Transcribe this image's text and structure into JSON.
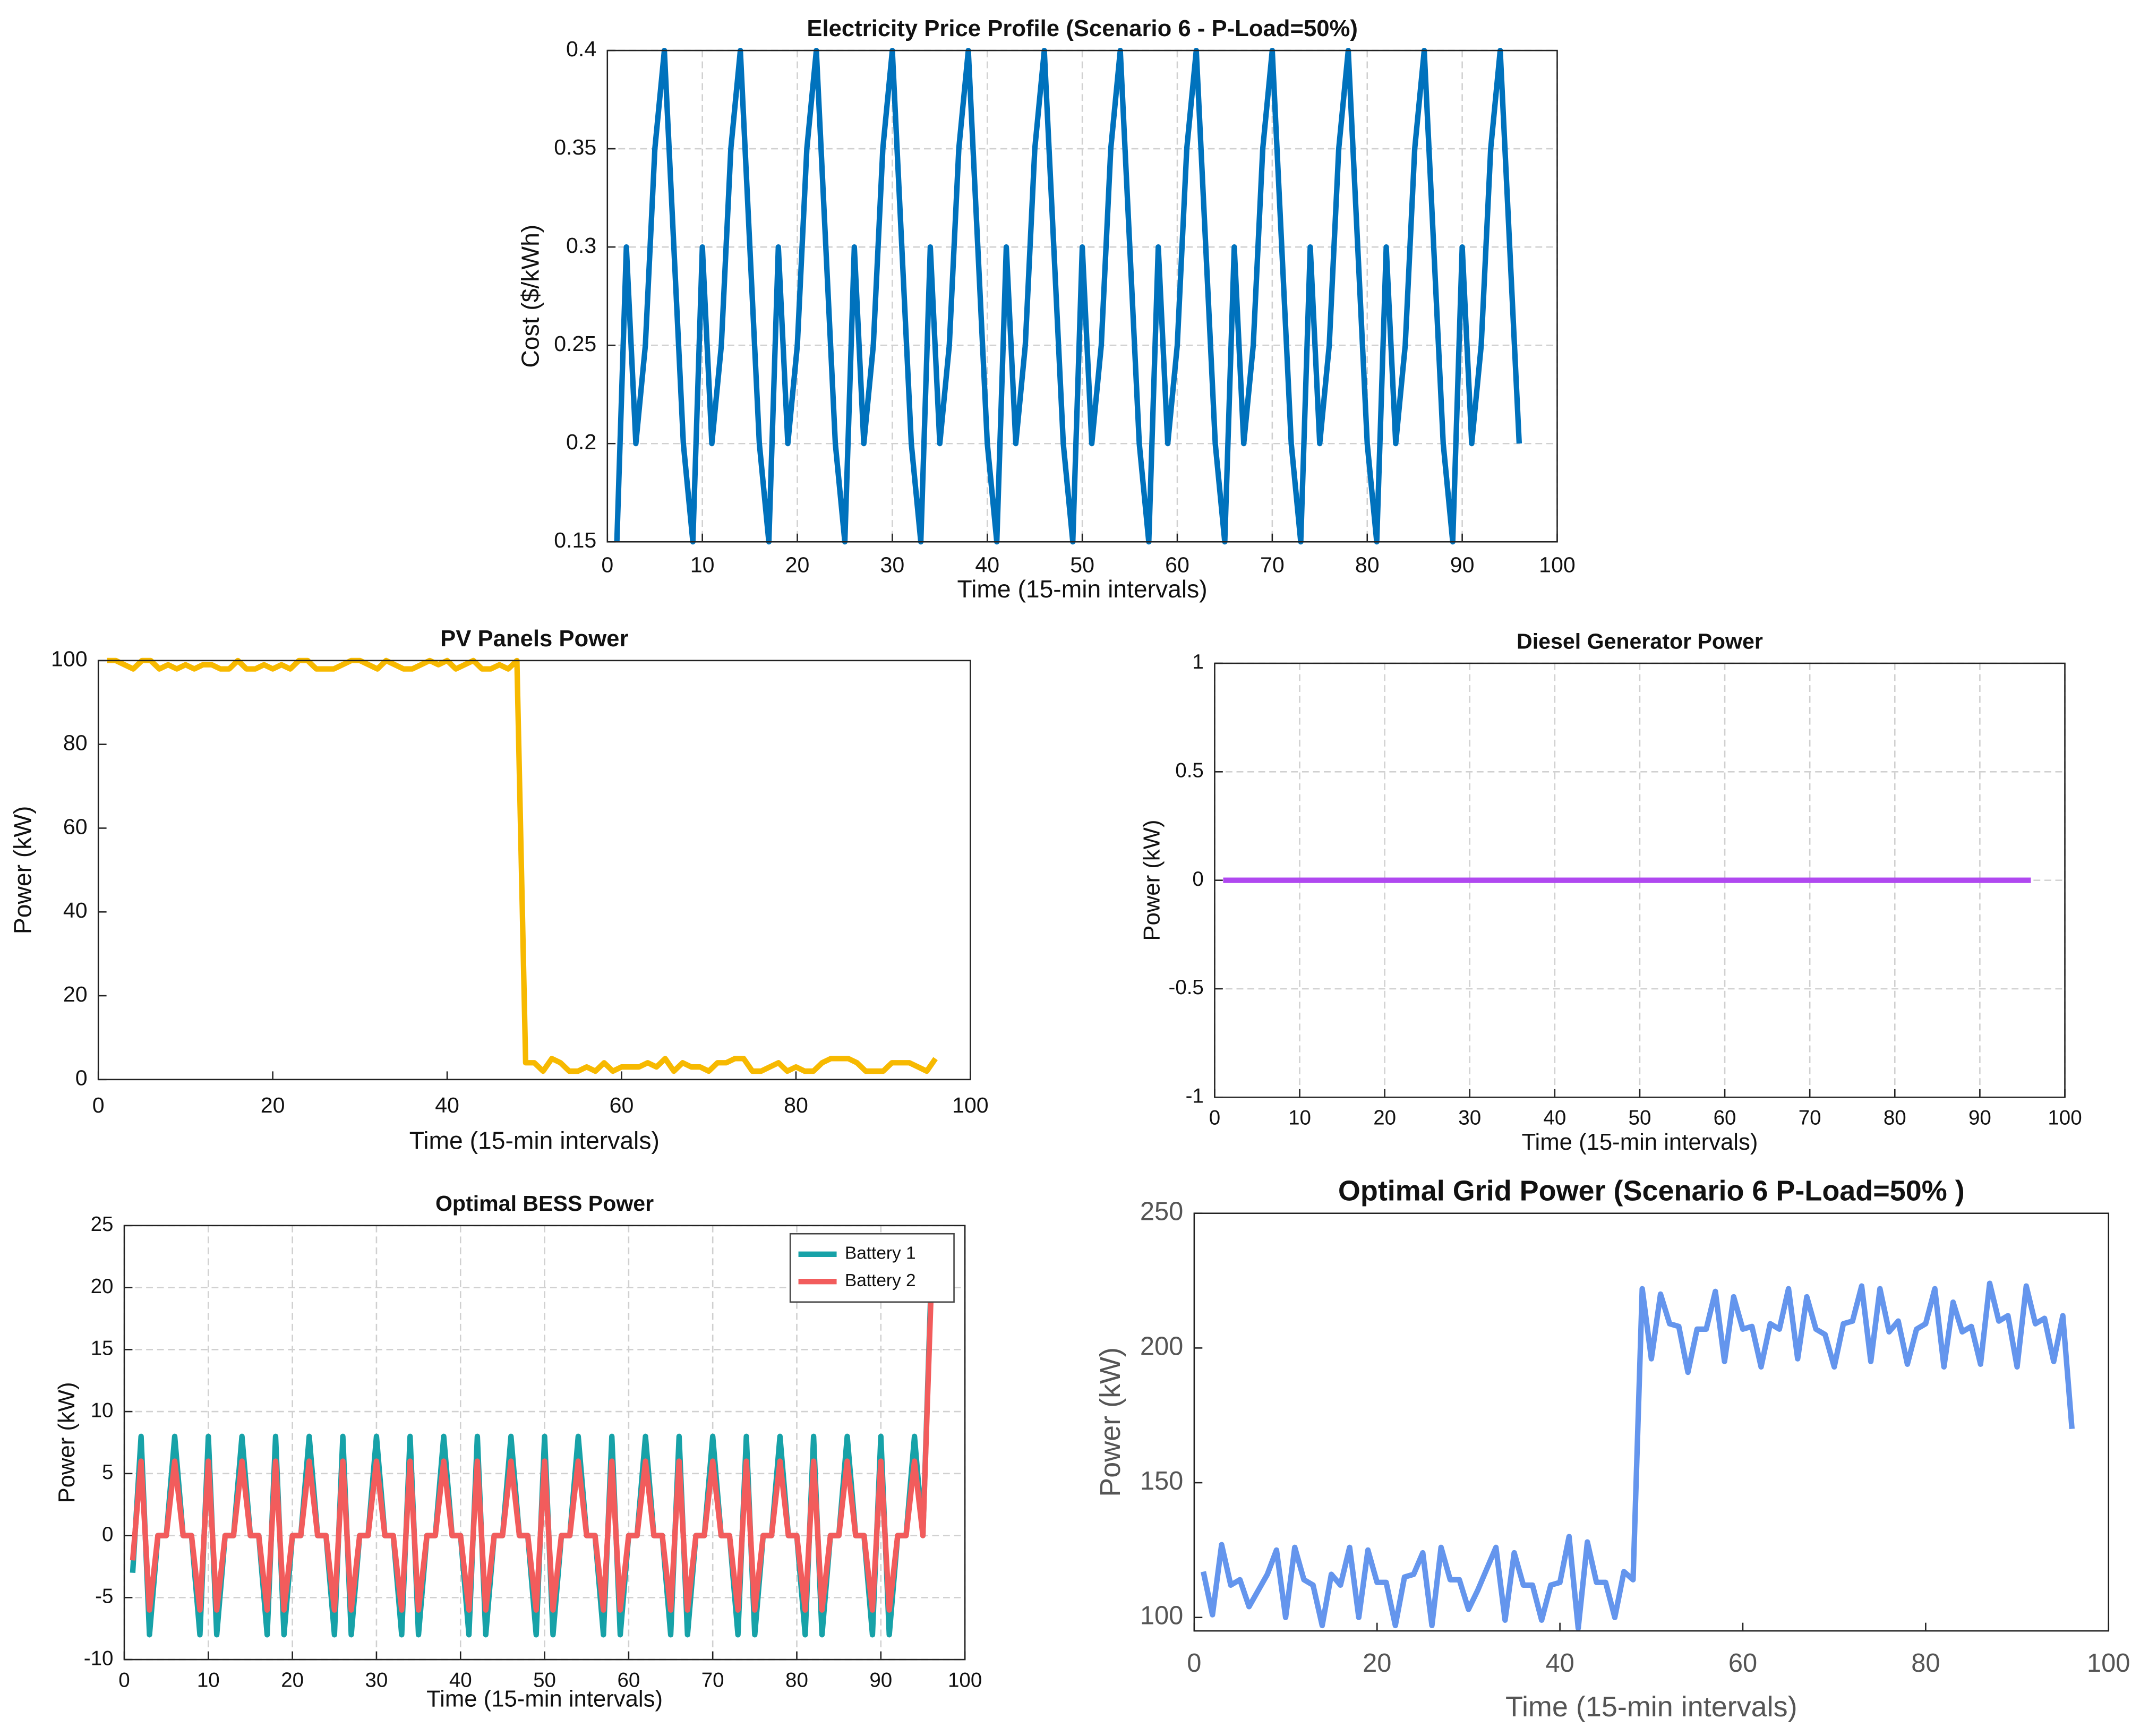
{
  "chart_data": [
    {
      "type": "line",
      "title": "Electricity Price Profile (Scenario 6 - P-Load=50%)",
      "xlabel": "Time (15-min intervals)",
      "ylabel": "Cost ($/kWh)",
      "x": [
        1,
        2,
        3,
        4,
        5,
        6,
        7,
        8,
        9,
        10,
        11,
        12,
        13,
        14,
        15,
        16,
        17,
        18,
        19,
        20,
        21,
        22,
        23,
        24,
        25,
        26,
        27,
        28,
        29,
        30,
        31,
        32,
        33,
        34,
        35,
        36,
        37,
        38,
        39,
        40,
        41,
        42,
        43,
        44,
        45,
        46,
        47,
        48,
        49,
        50,
        51,
        52,
        53,
        54,
        55,
        56,
        57,
        58,
        59,
        60,
        61,
        62,
        63,
        64,
        65,
        66,
        67,
        68,
        69,
        70,
        71,
        72,
        73,
        74,
        75,
        76,
        77,
        78,
        79,
        80,
        81,
        82,
        83,
        84,
        85,
        86,
        87,
        88,
        89,
        90,
        91,
        92,
        93,
        94,
        95,
        96
      ],
      "series": [
        {
          "color": "#0072bd",
          "values": [
            0.15,
            0.3,
            0.2,
            0.25,
            0.35,
            0.4,
            0.3,
            0.2,
            0.15,
            0.3,
            0.2,
            0.25,
            0.35,
            0.4,
            0.3,
            0.2,
            0.15,
            0.3,
            0.2,
            0.25,
            0.35,
            0.4,
            0.3,
            0.2,
            0.15,
            0.3,
            0.2,
            0.25,
            0.35,
            0.4,
            0.3,
            0.2,
            0.15,
            0.3,
            0.2,
            0.25,
            0.35,
            0.4,
            0.3,
            0.2,
            0.15,
            0.3,
            0.2,
            0.25,
            0.35,
            0.4,
            0.3,
            0.2,
            0.15,
            0.3,
            0.2,
            0.25,
            0.35,
            0.4,
            0.3,
            0.2,
            0.15,
            0.3,
            0.2,
            0.25,
            0.35,
            0.4,
            0.3,
            0.2,
            0.15,
            0.3,
            0.2,
            0.25,
            0.35,
            0.4,
            0.3,
            0.2,
            0.15,
            0.3,
            0.2,
            0.25,
            0.35,
            0.4,
            0.3,
            0.2,
            0.15,
            0.3,
            0.2,
            0.25,
            0.35,
            0.4,
            0.3,
            0.2,
            0.15,
            0.3,
            0.2,
            0.25,
            0.35,
            0.4,
            0.3,
            0.2
          ]
        }
      ],
      "xlim": [
        0,
        100
      ],
      "xticks": [
        0,
        10,
        20,
        30,
        40,
        50,
        60,
        70,
        80,
        90,
        100
      ],
      "ylim": [
        0.15,
        0.4
      ],
      "yticks": [
        0.15,
        0.2,
        0.25,
        0.3,
        0.35,
        0.4
      ],
      "grid": true
    },
    {
      "type": "line",
      "title": "PV Panels Power",
      "xlabel": "Time (15-min intervals)",
      "ylabel": "Power (kW)",
      "x": [
        1,
        2,
        3,
        4,
        5,
        6,
        7,
        8,
        9,
        10,
        11,
        12,
        13,
        14,
        15,
        16,
        17,
        18,
        19,
        20,
        21,
        22,
        23,
        24,
        25,
        26,
        27,
        28,
        29,
        30,
        31,
        32,
        33,
        34,
        35,
        36,
        37,
        38,
        39,
        40,
        41,
        42,
        43,
        44,
        45,
        46,
        47,
        48,
        49,
        50,
        51,
        52,
        53,
        54,
        55,
        56,
        57,
        58,
        59,
        60,
        61,
        62,
        63,
        64,
        65,
        66,
        67,
        68,
        69,
        70,
        71,
        72,
        73,
        74,
        75,
        76,
        77,
        78,
        79,
        80,
        81,
        82,
        83,
        84,
        85,
        86,
        87,
        88,
        89,
        90,
        91,
        92,
        93,
        94,
        95,
        96
      ],
      "series": [
        {
          "color": "#f7b900",
          "values": [
            100,
            100,
            99,
            98,
            100,
            100,
            98,
            99,
            98,
            99,
            98,
            99,
            99,
            98,
            98,
            100,
            98,
            98,
            99,
            98,
            99,
            98,
            100,
            100,
            98,
            98,
            98,
            99,
            100,
            100,
            99,
            98,
            100,
            99,
            98,
            98,
            99,
            100,
            99,
            100,
            98,
            99,
            100,
            98,
            98,
            99,
            98,
            100,
            4,
            4,
            2,
            5,
            4,
            2,
            2,
            3,
            2,
            4,
            2,
            3,
            3,
            3,
            4,
            3,
            5,
            2,
            4,
            3,
            3,
            2,
            4,
            4,
            5,
            5,
            2,
            2,
            3,
            4,
            2,
            3,
            2,
            2,
            4,
            5,
            5,
            5,
            4,
            2,
            2,
            2,
            4,
            4,
            4,
            3,
            2,
            5
          ]
        }
      ],
      "xlim": [
        0,
        100
      ],
      "xticks": [
        0,
        20,
        40,
        60,
        80,
        100
      ],
      "ylim": [
        0,
        100
      ],
      "yticks": [
        0,
        20,
        40,
        60,
        80,
        100
      ],
      "grid": false
    },
    {
      "type": "line",
      "title": "Diesel Generator Power",
      "xlabel": "Time (15-min intervals)",
      "ylabel": "Power (kW)",
      "x": [
        1,
        2,
        3,
        4,
        5,
        6,
        7,
        8,
        9,
        10,
        11,
        12,
        13,
        14,
        15,
        16,
        17,
        18,
        19,
        20,
        21,
        22,
        23,
        24,
        25,
        26,
        27,
        28,
        29,
        30,
        31,
        32,
        33,
        34,
        35,
        36,
        37,
        38,
        39,
        40,
        41,
        42,
        43,
        44,
        45,
        46,
        47,
        48,
        49,
        50,
        51,
        52,
        53,
        54,
        55,
        56,
        57,
        58,
        59,
        60,
        61,
        62,
        63,
        64,
        65,
        66,
        67,
        68,
        69,
        70,
        71,
        72,
        73,
        74,
        75,
        76,
        77,
        78,
        79,
        80,
        81,
        82,
        83,
        84,
        85,
        86,
        87,
        88,
        89,
        90,
        91,
        92,
        93,
        94,
        95,
        96
      ],
      "series": [
        {
          "color": "#b048f0",
          "values": [
            0,
            0,
            0,
            0,
            0,
            0,
            0,
            0,
            0,
            0,
            0,
            0,
            0,
            0,
            0,
            0,
            0,
            0,
            0,
            0,
            0,
            0,
            0,
            0,
            0,
            0,
            0,
            0,
            0,
            0,
            0,
            0,
            0,
            0,
            0,
            0,
            0,
            0,
            0,
            0,
            0,
            0,
            0,
            0,
            0,
            0,
            0,
            0,
            0,
            0,
            0,
            0,
            0,
            0,
            0,
            0,
            0,
            0,
            0,
            0,
            0,
            0,
            0,
            0,
            0,
            0,
            0,
            0,
            0,
            0,
            0,
            0,
            0,
            0,
            0,
            0,
            0,
            0,
            0,
            0,
            0,
            0,
            0,
            0,
            0,
            0,
            0,
            0,
            0,
            0,
            0,
            0,
            0,
            0,
            0,
            0
          ]
        }
      ],
      "xlim": [
        0,
        100
      ],
      "xticks": [
        0,
        10,
        20,
        30,
        40,
        50,
        60,
        70,
        80,
        90,
        100
      ],
      "ylim": [
        -1,
        1
      ],
      "yticks": [
        -1,
        -0.5,
        0,
        0.5,
        1
      ],
      "grid": true
    },
    {
      "type": "line",
      "title": "Optimal BESS Power",
      "xlabel": "Time (15-min intervals)",
      "ylabel": "Power (kW)",
      "x": [
        1,
        2,
        3,
        4,
        5,
        6,
        7,
        8,
        9,
        10,
        11,
        12,
        13,
        14,
        15,
        16,
        17,
        18,
        19,
        20,
        21,
        22,
        23,
        24,
        25,
        26,
        27,
        28,
        29,
        30,
        31,
        32,
        33,
        34,
        35,
        36,
        37,
        38,
        39,
        40,
        41,
        42,
        43,
        44,
        45,
        46,
        47,
        48,
        49,
        50,
        51,
        52,
        53,
        54,
        55,
        56,
        57,
        58,
        59,
        60,
        61,
        62,
        63,
        64,
        65,
        66,
        67,
        68,
        69,
        70,
        71,
        72,
        73,
        74,
        75,
        76,
        77,
        78,
        79,
        80,
        81,
        82,
        83,
        84,
        85,
        86,
        87,
        88,
        89,
        90,
        91,
        92,
        93,
        94,
        95,
        96
      ],
      "series": [
        {
          "name": "Battery 1",
          "color": "#17a2a8",
          "values": [
            -3,
            8,
            -8,
            0,
            0,
            8,
            0,
            0,
            -8,
            8,
            -8,
            0,
            0,
            8,
            0,
            0,
            -8,
            8,
            -8,
            0,
            0,
            8,
            0,
            0,
            -8,
            8,
            -8,
            0,
            0,
            8,
            0,
            0,
            -8,
            8,
            -8,
            0,
            0,
            8,
            0,
            0,
            -8,
            8,
            -8,
            0,
            0,
            8,
            0,
            0,
            -8,
            8,
            -8,
            0,
            0,
            8,
            0,
            0,
            -8,
            8,
            -8,
            0,
            0,
            8,
            0,
            0,
            -8,
            8,
            -8,
            0,
            0,
            8,
            0,
            0,
            -8,
            8,
            -8,
            0,
            0,
            8,
            0,
            0,
            -8,
            8,
            -8,
            0,
            0,
            8,
            0,
            0,
            -8,
            8,
            -8,
            0,
            0,
            8,
            0,
            21
          ]
        },
        {
          "name": "Battery 2",
          "color": "#f25c5c",
          "values": [
            -2,
            6,
            -6,
            0,
            0,
            6,
            0,
            0,
            -6,
            6,
            -6,
            0,
            0,
            6,
            0,
            0,
            -6,
            6,
            -6,
            0,
            0,
            6,
            0,
            0,
            -6,
            6,
            -6,
            0,
            0,
            6,
            0,
            0,
            -6,
            6,
            -6,
            0,
            0,
            6,
            0,
            0,
            -6,
            6,
            -6,
            0,
            0,
            6,
            0,
            0,
            -6,
            6,
            -6,
            0,
            0,
            6,
            0,
            0,
            -6,
            6,
            -6,
            0,
            0,
            6,
            0,
            0,
            -6,
            6,
            -6,
            0,
            0,
            6,
            0,
            0,
            -6,
            6,
            -6,
            0,
            0,
            6,
            0,
            0,
            -6,
            6,
            -6,
            0,
            0,
            6,
            0,
            0,
            -6,
            6,
            -6,
            0,
            0,
            6,
            0,
            20
          ]
        }
      ],
      "xlim": [
        0,
        100
      ],
      "xticks": [
        0,
        10,
        20,
        30,
        40,
        50,
        60,
        70,
        80,
        90,
        100
      ],
      "ylim": [
        -10,
        25
      ],
      "yticks": [
        -10,
        -5,
        0,
        5,
        10,
        15,
        20,
        25
      ],
      "grid": true,
      "legend": "upper right"
    },
    {
      "type": "line",
      "title": "Optimal Grid Power (Scenario 6 P-Load=50%  )",
      "xlabel": "Time (15-min intervals)",
      "ylabel": "Power (kW)",
      "x": [
        1,
        2,
        3,
        4,
        5,
        6,
        7,
        8,
        9,
        10,
        11,
        12,
        13,
        14,
        15,
        16,
        17,
        18,
        19,
        20,
        21,
        22,
        23,
        24,
        25,
        26,
        27,
        28,
        29,
        30,
        31,
        32,
        33,
        34,
        35,
        36,
        37,
        38,
        39,
        40,
        41,
        42,
        43,
        44,
        45,
        46,
        47,
        48,
        49,
        50,
        51,
        52,
        53,
        54,
        55,
        56,
        57,
        58,
        59,
        60,
        61,
        62,
        63,
        64,
        65,
        66,
        67,
        68,
        69,
        70,
        71,
        72,
        73,
        74,
        75,
        76,
        77,
        78,
        79,
        80,
        81,
        82,
        83,
        84,
        85,
        86,
        87,
        88,
        89,
        90,
        91,
        92,
        93,
        94,
        95,
        96
      ],
      "series": [
        {
          "color": "#6495ed",
          "values": [
            117,
            101,
            127,
            112,
            114,
            104,
            110,
            116,
            125,
            100,
            126,
            114,
            112,
            97,
            116,
            112,
            126,
            100,
            125,
            113,
            113,
            97,
            115,
            116,
            124,
            97,
            126,
            114,
            114,
            103,
            110,
            118,
            126,
            99,
            124,
            112,
            112,
            99,
            112,
            113,
            130,
            96,
            128,
            113,
            113,
            100,
            117,
            114,
            222,
            196,
            220,
            209,
            208,
            191,
            207,
            207,
            221,
            195,
            219,
            207,
            208,
            193,
            209,
            207,
            222,
            196,
            219,
            207,
            205,
            193,
            209,
            210,
            223,
            195,
            222,
            206,
            210,
            194,
            207,
            209,
            222,
            193,
            217,
            206,
            208,
            194,
            224,
            210,
            212,
            193,
            223,
            209,
            211,
            195,
            212,
            170
          ]
        }
      ],
      "xlim": [
        0,
        100
      ],
      "xticks": [
        0,
        20,
        40,
        60,
        80,
        100
      ],
      "ylim": [
        95,
        250
      ],
      "yticks": [
        100,
        150,
        200,
        250
      ],
      "grid": false
    }
  ]
}
